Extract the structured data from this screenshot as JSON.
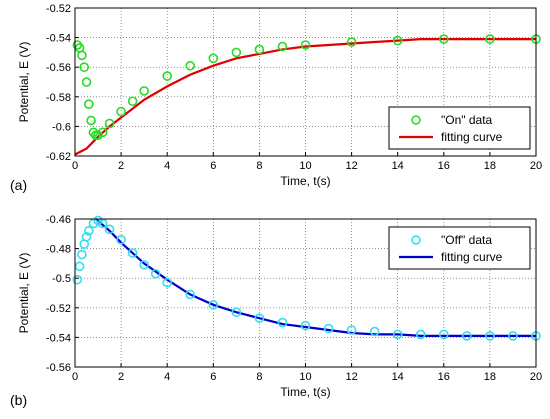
{
  "chart_data": [
    {
      "type": "scatter",
      "panel_label": "(a)",
      "xlabel": "Time, t(s)",
      "ylabel": "Potential, E (V)",
      "xlim": [
        0,
        20
      ],
      "ylim": [
        -0.62,
        -0.52
      ],
      "xticks": [
        0,
        2,
        4,
        6,
        8,
        10,
        12,
        14,
        16,
        18,
        20
      ],
      "yticks": [
        -0.62,
        -0.6,
        -0.58,
        -0.56,
        -0.54,
        -0.52
      ],
      "xtick_labels": [
        "0",
        "2",
        "4",
        "6",
        "8",
        "10",
        "12",
        "14",
        "16",
        "18",
        "20"
      ],
      "ytick_labels": [
        "-0.62",
        "-0.6",
        "-0.58",
        "-0.56",
        "-0.54",
        "-0.52"
      ],
      "grid": true,
      "legend_position": "bottom-right",
      "series": [
        {
          "name": "\"On\" data",
          "kind": "markers",
          "marker": "circle-open",
          "color": "#22dd22",
          "x": [
            0.1,
            0.2,
            0.3,
            0.4,
            0.5,
            0.6,
            0.7,
            0.8,
            0.9,
            1.0,
            1.2,
            1.5,
            2,
            2.5,
            3,
            4,
            5,
            6,
            7,
            8,
            9,
            10,
            12,
            14,
            16,
            18,
            20
          ],
          "y": [
            -0.545,
            -0.547,
            -0.552,
            -0.56,
            -0.57,
            -0.585,
            -0.596,
            -0.604,
            -0.606,
            -0.606,
            -0.604,
            -0.598,
            -0.59,
            -0.583,
            -0.576,
            -0.566,
            -0.559,
            -0.554,
            -0.55,
            -0.548,
            -0.546,
            -0.545,
            -0.543,
            -0.542,
            -0.541,
            -0.541,
            -0.541
          ]
        },
        {
          "name": "fitting curve",
          "kind": "line",
          "color": "#e00000",
          "x": [
            0,
            0.5,
            1,
            1.5,
            2,
            3,
            4,
            5,
            6,
            7,
            8,
            9,
            10,
            11,
            12,
            13,
            14,
            15,
            16,
            17,
            18,
            19,
            20
          ],
          "y": [
            -0.619,
            -0.615,
            -0.607,
            -0.6,
            -0.594,
            -0.582,
            -0.573,
            -0.565,
            -0.559,
            -0.554,
            -0.551,
            -0.548,
            -0.546,
            -0.545,
            -0.544,
            -0.543,
            -0.542,
            -0.541,
            -0.541,
            -0.541,
            -0.541,
            -0.541,
            -0.541
          ]
        }
      ]
    },
    {
      "type": "scatter",
      "panel_label": "(b)",
      "xlabel": "Time, t(s)",
      "ylabel": "Potential, E (V)",
      "xlim": [
        0,
        20
      ],
      "ylim": [
        -0.56,
        -0.46
      ],
      "xticks": [
        0,
        2,
        4,
        6,
        8,
        10,
        12,
        14,
        16,
        18,
        20
      ],
      "yticks": [
        -0.56,
        -0.54,
        -0.52,
        -0.5,
        -0.48,
        -0.46
      ],
      "xtick_labels": [
        "0",
        "2",
        "4",
        "6",
        "8",
        "10",
        "12",
        "14",
        "16",
        "18",
        "20"
      ],
      "ytick_labels": [
        "-0.56",
        "-0.54",
        "-0.52",
        "-0.5",
        "-0.48",
        "-0.46"
      ],
      "grid": true,
      "legend_position": "top-right",
      "series": [
        {
          "name": "\"Off\" data",
          "kind": "markers",
          "marker": "circle-open",
          "color": "#33ddee",
          "x": [
            0.1,
            0.2,
            0.3,
            0.4,
            0.5,
            0.6,
            0.8,
            1.0,
            1.2,
            1.5,
            2,
            2.5,
            3,
            3.5,
            4,
            5,
            6,
            7,
            8,
            9,
            10,
            11,
            12,
            13,
            14,
            15,
            16,
            17,
            18,
            19,
            20
          ],
          "y": [
            -0.501,
            -0.492,
            -0.484,
            -0.477,
            -0.472,
            -0.468,
            -0.463,
            -0.461,
            -0.463,
            -0.467,
            -0.474,
            -0.483,
            -0.491,
            -0.497,
            -0.503,
            -0.511,
            -0.518,
            -0.523,
            -0.527,
            -0.53,
            -0.532,
            -0.534,
            -0.535,
            -0.536,
            -0.538,
            -0.538,
            -0.538,
            -0.539,
            -0.539,
            -0.539,
            -0.539
          ]
        },
        {
          "name": "fitting curve",
          "kind": "line",
          "color": "#0000cc",
          "x": [
            0.9,
            1.5,
            2,
            3,
            4,
            5,
            6,
            7,
            8,
            9,
            10,
            11,
            12,
            13,
            14,
            15,
            16,
            17,
            18,
            19,
            20
          ],
          "y": [
            -0.46,
            -0.468,
            -0.476,
            -0.49,
            -0.501,
            -0.511,
            -0.518,
            -0.523,
            -0.527,
            -0.531,
            -0.533,
            -0.535,
            -0.537,
            -0.538,
            -0.538,
            -0.539,
            -0.539,
            -0.539,
            -0.539,
            -0.539,
            -0.539
          ]
        }
      ]
    }
  ]
}
